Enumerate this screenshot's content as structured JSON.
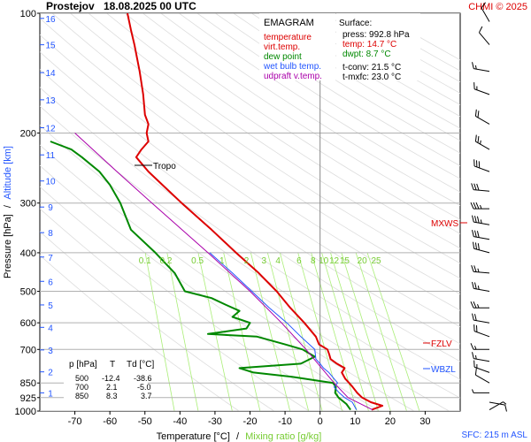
{
  "header": {
    "station": "Prostejov",
    "datetime": "18.08.2025 00 UTC",
    "credit": "CHMI © 2025"
  },
  "legend": {
    "title": "EMAGRAM",
    "items": [
      {
        "label": "temperature",
        "color": "#dd0000"
      },
      {
        "label": "virt.temp.",
        "color": "#dd0000"
      },
      {
        "label": "dew point",
        "color": "#008800"
      },
      {
        "label": "wet bulb temp.",
        "color": "#2255ff"
      },
      {
        "label": "udpraft v.temp.",
        "color": "#aa00aa"
      }
    ]
  },
  "surface": {
    "title": "Surface:",
    "press": "press: 992.8 hPa",
    "temp": "temp: 14.7 °C",
    "dwpt": "dwpt: 8.7 °C",
    "tconv": "t-conv: 21.5 °C",
    "tmxfc": "t-mxfc: 23.0 °C"
  },
  "table": {
    "headers": [
      "p [hPa]",
      "T",
      "Td [°C]"
    ],
    "rows": [
      [
        "500",
        "-12.4",
        "-38.6"
      ],
      [
        "700",
        "2.1",
        "-5.0"
      ],
      [
        "850",
        "8.3",
        "3.7"
      ]
    ]
  },
  "annotations": {
    "tropo": "Tropo",
    "mxws": "MXWS",
    "fzlv": "FZLV",
    "wbzl": "WBZL"
  },
  "footer": {
    "sfc": "SFC: 215 m ASL",
    "xlabel_temp": "Temperature [°C]",
    "xlabel_sep": "/",
    "xlabel_mix": "Mixing ratio [g/kg]"
  },
  "axis": {
    "ylabel_pressure": "Pressure [hPa]",
    "ylabel_sep": "/",
    "ylabel_alt": "Altitude [km]"
  },
  "chart_data": {
    "type": "line",
    "title": "Prostejov 18.08.2025 00 UTC",
    "xlabel": "Temperature [°C] / Mixing ratio [g/kg]",
    "ylabel": "Pressure [hPa] / Altitude [km]",
    "y_scale": "log",
    "xlim": [
      -80,
      40
    ],
    "ylim": [
      1000,
      100
    ],
    "pressure_ticks": [
      100,
      200,
      300,
      400,
      500,
      600,
      700,
      850,
      925,
      1000
    ],
    "temperature_ticks": [
      -70,
      -60,
      -50,
      -40,
      -30,
      -20,
      -10,
      0,
      10,
      20,
      30
    ],
    "altitude_ticks": [
      {
        "km": 1,
        "p": 900
      },
      {
        "km": 2,
        "p": 797
      },
      {
        "km": 3,
        "p": 702
      },
      {
        "km": 4,
        "p": 616
      },
      {
        "km": 5,
        "p": 541
      },
      {
        "km": 6,
        "p": 472
      },
      {
        "km": 7,
        "p": 410
      },
      {
        "km": 8,
        "p": 356
      },
      {
        "km": 9,
        "p": 307
      },
      {
        "km": 10,
        "p": 264
      },
      {
        "km": 11,
        "p": 227
      },
      {
        "km": 12,
        "p": 194
      },
      {
        "km": 13,
        "p": 165
      },
      {
        "km": 14,
        "p": 141
      },
      {
        "km": 15,
        "p": 120
      },
      {
        "km": 16,
        "p": 103
      }
    ],
    "mixing_ratio_labels": [
      {
        "label": "0.1",
        "t": -50
      },
      {
        "label": "0.2",
        "t": -44
      },
      {
        "label": "0.5",
        "t": -35
      },
      {
        "label": "1",
        "t": -28
      },
      {
        "label": "2",
        "t": -21
      },
      {
        "label": "3",
        "t": -16
      },
      {
        "label": "4",
        "t": -12
      },
      {
        "label": "6",
        "t": -6
      },
      {
        "label": "8",
        "t": -2
      },
      {
        "label": "10",
        "t": 1
      },
      {
        "label": "12",
        "t": 4
      },
      {
        "label": "15",
        "t": 7
      },
      {
        "label": "20",
        "t": 12
      },
      {
        "label": "25",
        "t": 16
      }
    ],
    "grid": true,
    "series": [
      {
        "name": "temperature",
        "color": "#dd0000",
        "points": [
          [
            993,
            14.7
          ],
          [
            970,
            17.8
          ],
          [
            950,
            14.5
          ],
          [
            925,
            12.0
          ],
          [
            900,
            10.6
          ],
          [
            870,
            9.3
          ],
          [
            850,
            8.3
          ],
          [
            830,
            7.2
          ],
          [
            800,
            6.2
          ],
          [
            780,
            7.0
          ],
          [
            760,
            4.8
          ],
          [
            740,
            3.0
          ],
          [
            720,
            2.6
          ],
          [
            700,
            2.1
          ],
          [
            680,
            -0.3
          ],
          [
            650,
            -1.2
          ],
          [
            600,
            -4.5
          ],
          [
            550,
            -8.5
          ],
          [
            500,
            -12.4
          ],
          [
            450,
            -17.5
          ],
          [
            400,
            -24.0
          ],
          [
            350,
            -31.0
          ],
          [
            300,
            -39.5
          ],
          [
            270,
            -45.0
          ],
          [
            250,
            -49.0
          ],
          [
            230,
            -52.5
          ],
          [
            220,
            -51.0
          ],
          [
            210,
            -49.0
          ],
          [
            200,
            -49.5
          ],
          [
            190,
            -49.0
          ],
          [
            180,
            -50.0
          ],
          [
            160,
            -50.5
          ],
          [
            140,
            -51.5
          ],
          [
            120,
            -53.0
          ],
          [
            110,
            -54.0
          ],
          [
            100,
            -55.0
          ]
        ]
      },
      {
        "name": "dew point",
        "color": "#008800",
        "points": [
          [
            993,
            8.7
          ],
          [
            960,
            7.5
          ],
          [
            925,
            5.3
          ],
          [
            900,
            4.3
          ],
          [
            870,
            4.5
          ],
          [
            850,
            3.7
          ],
          [
            820,
            -8.0
          ],
          [
            800,
            -19.0
          ],
          [
            780,
            -23.0
          ],
          [
            760,
            -5.5
          ],
          [
            730,
            -1.5
          ],
          [
            700,
            -5.0
          ],
          [
            680,
            -10.0
          ],
          [
            650,
            -18.0
          ],
          [
            640,
            -32.0
          ],
          [
            620,
            -21.0
          ],
          [
            600,
            -20.0
          ],
          [
            580,
            -25.0
          ],
          [
            560,
            -23.0
          ],
          [
            540,
            -27.0
          ],
          [
            520,
            -31.0
          ],
          [
            500,
            -38.6
          ],
          [
            450,
            -41.5
          ],
          [
            400,
            -47.0
          ],
          [
            350,
            -54.0
          ],
          [
            300,
            -57.0
          ],
          [
            270,
            -60.0
          ],
          [
            250,
            -63.0
          ],
          [
            230,
            -68.0
          ],
          [
            220,
            -71.0
          ],
          [
            210,
            -77.0
          ]
        ]
      },
      {
        "name": "wet bulb temp.",
        "color": "#2255ff",
        "points": [
          [
            993,
            10.4
          ],
          [
            950,
            9.2
          ],
          [
            925,
            7.0
          ],
          [
            900,
            5.5
          ],
          [
            870,
            4.0
          ],
          [
            850,
            5.0
          ],
          [
            800,
            2.5
          ],
          [
            780,
            1.0
          ],
          [
            760,
            0.0
          ],
          [
            740,
            -1.2
          ],
          [
            700,
            -1.5
          ],
          [
            650,
            -5.5
          ],
          [
            600,
            -9.5
          ],
          [
            550,
            -14.5
          ],
          [
            500,
            -19.5
          ],
          [
            450,
            -25.0
          ],
          [
            400,
            -31.5
          ]
        ]
      },
      {
        "name": "udpraft v.temp.",
        "color": "#aa00aa",
        "points": [
          [
            993,
            15.0
          ],
          [
            925,
            8.0
          ],
          [
            850,
            4.0
          ],
          [
            700,
            -4.0
          ],
          [
            600,
            -11.0
          ],
          [
            500,
            -20.0
          ],
          [
            400,
            -32.0
          ],
          [
            300,
            -48.0
          ],
          [
            250,
            -58.0
          ],
          [
            200,
            -70.0
          ]
        ]
      }
    ],
    "wind_barbs": [
      {
        "p": 993,
        "dir": 60,
        "kt": 5
      },
      {
        "p": 950,
        "dir": 100,
        "kt": 10
      },
      {
        "p": 900,
        "dir": 270,
        "kt": 5
      },
      {
        "p": 850,
        "dir": 300,
        "kt": 10
      },
      {
        "p": 800,
        "dir": 290,
        "kt": 15
      },
      {
        "p": 750,
        "dir": 280,
        "kt": 15
      },
      {
        "p": 700,
        "dir": 270,
        "kt": 15
      },
      {
        "p": 650,
        "dir": 290,
        "kt": 20
      },
      {
        "p": 600,
        "dir": 280,
        "kt": 20
      },
      {
        "p": 550,
        "dir": 270,
        "kt": 25
      },
      {
        "p": 500,
        "dir": 280,
        "kt": 25
      },
      {
        "p": 450,
        "dir": 275,
        "kt": 25
      },
      {
        "p": 400,
        "dir": 285,
        "kt": 30
      },
      {
        "p": 370,
        "dir": 280,
        "kt": 30
      },
      {
        "p": 340,
        "dir": 280,
        "kt": 35
      },
      {
        "p": 310,
        "dir": 270,
        "kt": 35
      },
      {
        "p": 280,
        "dir": 275,
        "kt": 30
      },
      {
        "p": 250,
        "dir": 290,
        "kt": 30
      },
      {
        "p": 220,
        "dir": 300,
        "kt": 25
      },
      {
        "p": 190,
        "dir": 300,
        "kt": 20
      },
      {
        "p": 160,
        "dir": 290,
        "kt": 15
      },
      {
        "p": 140,
        "dir": 280,
        "kt": 15
      },
      {
        "p": 120,
        "dir": 320,
        "kt": 10
      },
      {
        "p": 105,
        "dir": 330,
        "kt": 10
      }
    ]
  }
}
